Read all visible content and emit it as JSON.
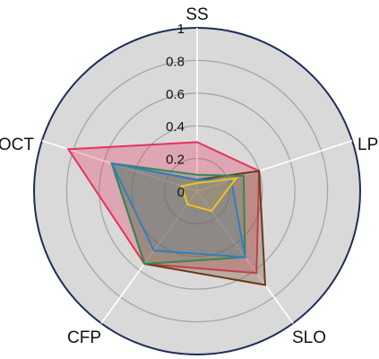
{
  "chart_data": {
    "type": "radar",
    "title": "",
    "axes": [
      "SS",
      "LP",
      "SLO",
      "CFP",
      "OCT"
    ],
    "ticks": [
      "0",
      "0.2",
      "0.4",
      "0.6",
      "0.8",
      "1"
    ],
    "range": [
      0,
      1
    ],
    "grid": true,
    "legend": "none",
    "series": [
      {
        "values": [
          0.3,
          0.4,
          0.62,
          0.55,
          0.83
        ],
        "color": "#e8315a",
        "fill": "#e8315a",
        "fill_opacity": 0.3
      },
      {
        "values": [
          0.07,
          0.4,
          0.71,
          0.55,
          0.55
        ],
        "color": "#6b3a16",
        "fill": "#7a5a3a",
        "fill_opacity": 0.35
      },
      {
        "values": [
          0.1,
          0.3,
          0.5,
          0.55,
          0.55
        ],
        "color": "#2e8b57",
        "fill": "#2e8b57",
        "fill_opacity": 0.2
      },
      {
        "values": [
          0.07,
          0.22,
          0.5,
          0.45,
          0.55
        ],
        "color": "#2f7fc1",
        "fill": "#2f7fc1",
        "fill_opacity": 0.15
      },
      {
        "values": [
          0.05,
          0.25,
          0.15,
          0.1,
          0.1
        ],
        "color": "#f2c21b",
        "fill": "#f2c21b",
        "fill_opacity": 0.1
      }
    ],
    "colors": {
      "background": "#d9d9d9",
      "grid": "#a6a6a6",
      "outer_ring": "#1f2d5a",
      "spokes": "#ffffff"
    }
  }
}
